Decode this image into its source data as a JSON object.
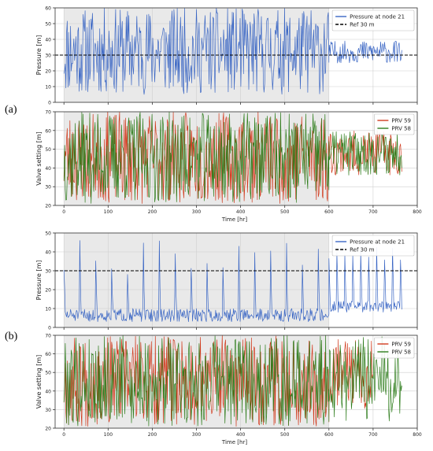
{
  "panel_labels": [
    "(a)",
    "(b)"
  ],
  "colors": {
    "pressure": "#3a66c4",
    "prv59": "#d13b1e",
    "prv58": "#2e7d1c",
    "ref": "#000000",
    "shade": "#e9e9e9",
    "grid": "#cfcfcf"
  },
  "chart_data": [
    {
      "type": "line",
      "panel": "(a)",
      "xlabel": "",
      "ylabel": "Pressure [m]",
      "xlim": [
        -20,
        800
      ],
      "ylim": [
        0,
        60
      ],
      "yticks": [
        0,
        10,
        20,
        30,
        40,
        50,
        60
      ],
      "xticks": [],
      "grid": true,
      "legend": "top-right",
      "shaded_x": [
        0,
        600
      ],
      "reference_line": {
        "name": "Ref 30 m",
        "y": 30
      },
      "series": [
        {
          "name": "Pressure at node 21",
          "color_key": "pressure",
          "seed": 11,
          "segments": [
            {
              "x_start": 0,
              "x_end": 600,
              "step": 1.5,
              "pattern": "random",
              "min": 5,
              "max": 60
            },
            {
              "x_start": 600,
              "x_end": 765,
              "step": 1.5,
              "pattern": "random",
              "min": 25,
              "max": 39
            }
          ]
        }
      ]
    },
    {
      "type": "line",
      "panel": "(a)",
      "xlabel": "Time [hr]",
      "ylabel": "Valve setting [m]",
      "xlim": [
        -20,
        800
      ],
      "ylim": [
        20,
        70
      ],
      "yticks": [
        20,
        30,
        40,
        50,
        60,
        70
      ],
      "xticks": [
        0,
        100,
        200,
        300,
        400,
        500,
        600,
        700,
        800
      ],
      "grid": true,
      "legend": "top-right",
      "shaded_x": [
        0,
        600
      ],
      "series": [
        {
          "name": "PRV 59",
          "color_key": "prv59",
          "seed": 23,
          "segments": [
            {
              "x_start": 0,
              "x_end": 600,
              "step": 1.5,
              "pattern": "random",
              "min": 21,
              "max": 70
            },
            {
              "x_start": 600,
              "x_end": 765,
              "step": 1.5,
              "pattern": "random",
              "min": 36,
              "max": 60
            }
          ]
        },
        {
          "name": "PRV 58",
          "color_key": "prv58",
          "seed": 37,
          "segments": [
            {
              "x_start": 0,
              "x_end": 600,
              "step": 1.5,
              "pattern": "random",
              "min": 21,
              "max": 70
            },
            {
              "x_start": 600,
              "x_end": 765,
              "step": 1.5,
              "pattern": "random",
              "min": 36,
              "max": 60
            }
          ]
        }
      ]
    },
    {
      "type": "line",
      "panel": "(b)",
      "xlabel": "",
      "ylabel": "Pressure [m]",
      "xlim": [
        -20,
        800
      ],
      "ylim": [
        0,
        50
      ],
      "yticks": [
        0,
        10,
        20,
        30,
        40,
        50
      ],
      "xticks": [],
      "grid": true,
      "legend": "top-right",
      "shaded_x": [
        0,
        600
      ],
      "reference_line": {
        "name": "Ref 30 m",
        "y": 30
      },
      "series": [
        {
          "name": "Pressure at node 21",
          "color_key": "pressure",
          "seed": 51,
          "segments": [
            {
              "x_start": 0,
              "x_end": 600,
              "step": 1.5,
              "pattern": "spikes",
              "base_min": 3,
              "base_max": 10,
              "spike_every": 24,
              "spike_min": 25,
              "spike_max": 46
            },
            {
              "x_start": 600,
              "x_end": 765,
              "step": 1.5,
              "pattern": "spikes",
              "base_min": 8,
              "base_max": 14,
              "spike_every": 12,
              "spike_min": 35,
              "spike_max": 43
            }
          ]
        }
      ]
    },
    {
      "type": "line",
      "panel": "(b)",
      "xlabel": "Time [hr]",
      "ylabel": "Valve setting [m]",
      "xlim": [
        -20,
        800
      ],
      "ylim": [
        20,
        70
      ],
      "yticks": [
        20,
        30,
        40,
        50,
        60,
        70
      ],
      "xticks": [
        0,
        100,
        200,
        300,
        400,
        500,
        600,
        700,
        800
      ],
      "grid": true,
      "legend": "top-right",
      "shaded_x": [
        0,
        600
      ],
      "series": [
        {
          "name": "PRV 59",
          "color_key": "prv59",
          "seed": 67,
          "segments": [
            {
              "x_start": 0,
              "x_end": 600,
              "step": 1.5,
              "pattern": "random",
              "min": 21,
              "max": 70
            },
            {
              "x_start": 600,
              "x_end": 700,
              "step": 1.5,
              "pattern": "random",
              "min": 30,
              "max": 70
            }
          ]
        },
        {
          "name": "PRV 58",
          "color_key": "prv58",
          "seed": 79,
          "segments": [
            {
              "x_start": 0,
              "x_end": 600,
              "step": 1.5,
              "pattern": "random",
              "min": 21,
              "max": 70
            },
            {
              "x_start": 600,
              "x_end": 765,
              "step": 1.5,
              "pattern": "random",
              "min": 22,
              "max": 70
            }
          ]
        }
      ]
    }
  ]
}
